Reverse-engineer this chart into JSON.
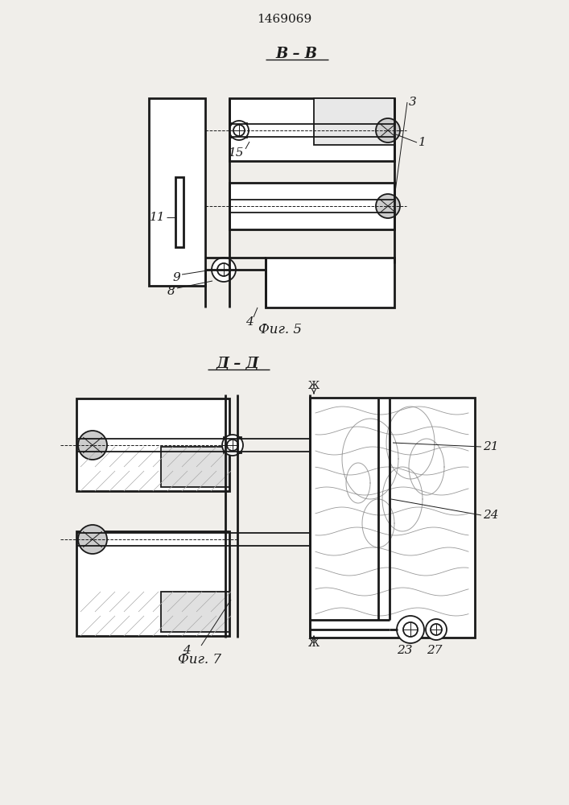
{
  "patent_number": "1469069",
  "fig5_title": "В – В",
  "fig7_title": "Д – Д",
  "fig5_caption": "Фиг. 5",
  "fig7_caption": "Фиг. 7",
  "bg_color": "#f0eeea",
  "line_color": "#1a1a1a",
  "lw": 1.3,
  "lw2": 2.0,
  "lw_thin": 0.7
}
